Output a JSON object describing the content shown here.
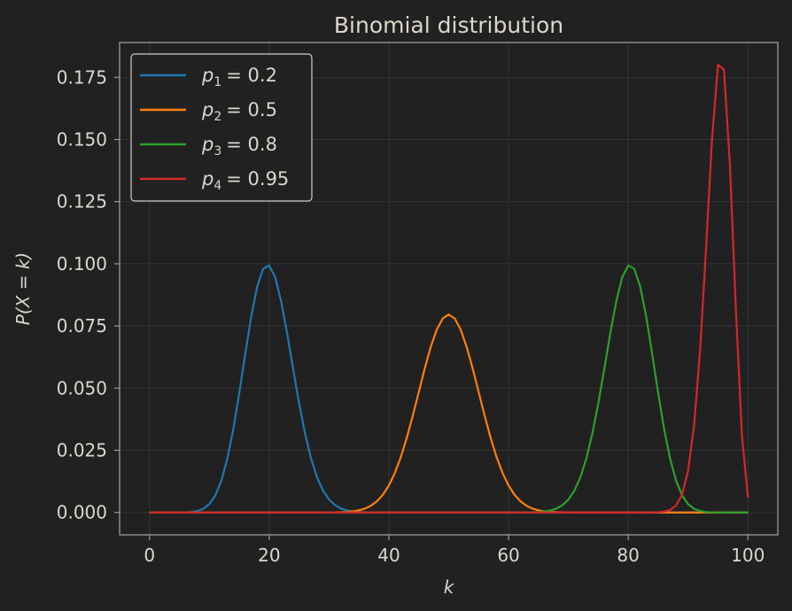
{
  "chart_data": {
    "type": "line",
    "title": "Binomial distribution",
    "xlabel": "k",
    "ylabel": "P(X = k)",
    "xlim": [
      -5,
      105
    ],
    "ylim": [
      -0.009,
      0.189
    ],
    "xticks": [
      0,
      20,
      40,
      60,
      80,
      100
    ],
    "xtick_labels": [
      "0",
      "20",
      "40",
      "60",
      "80",
      "100"
    ],
    "yticks": [
      0.0,
      0.025,
      0.05,
      0.075,
      0.1,
      0.125,
      0.15,
      0.175
    ],
    "ytick_labels": [
      "0.000",
      "0.025",
      "0.050",
      "0.075",
      "0.100",
      "0.125",
      "0.150",
      "0.175"
    ],
    "grid": true,
    "legend_position": "top-left",
    "n": 100,
    "series": [
      {
        "name": "p_1 = 0.2",
        "legend": {
          "var": "p",
          "sub": "1",
          "value": "= 0.2"
        },
        "p": 0.2,
        "color": "#1f77b4",
        "peak": {
          "k": 20,
          "value": 0.0993
        }
      },
      {
        "name": "p_2 = 0.5",
        "legend": {
          "var": "p",
          "sub": "2",
          "value": "= 0.5"
        },
        "p": 0.5,
        "color": "#ff7f0e",
        "peak": {
          "k": 50,
          "value": 0.0796
        }
      },
      {
        "name": "p_3 = 0.8",
        "legend": {
          "var": "p",
          "sub": "3",
          "value": "= 0.8"
        },
        "p": 0.8,
        "color": "#2ca02c",
        "peak": {
          "k": 80,
          "value": 0.0993
        }
      },
      {
        "name": "p_4 = 0.95",
        "legend": {
          "var": "p",
          "sub": "4",
          "value": "= 0.95"
        },
        "p": 0.95,
        "color": "#d62728",
        "peak": {
          "k": 95,
          "value": 0.18
        }
      }
    ]
  },
  "colors": {
    "background": "#212121",
    "axes_frame": "#9a9a9a",
    "grid": "#333333",
    "text": "#dcd7cc"
  }
}
